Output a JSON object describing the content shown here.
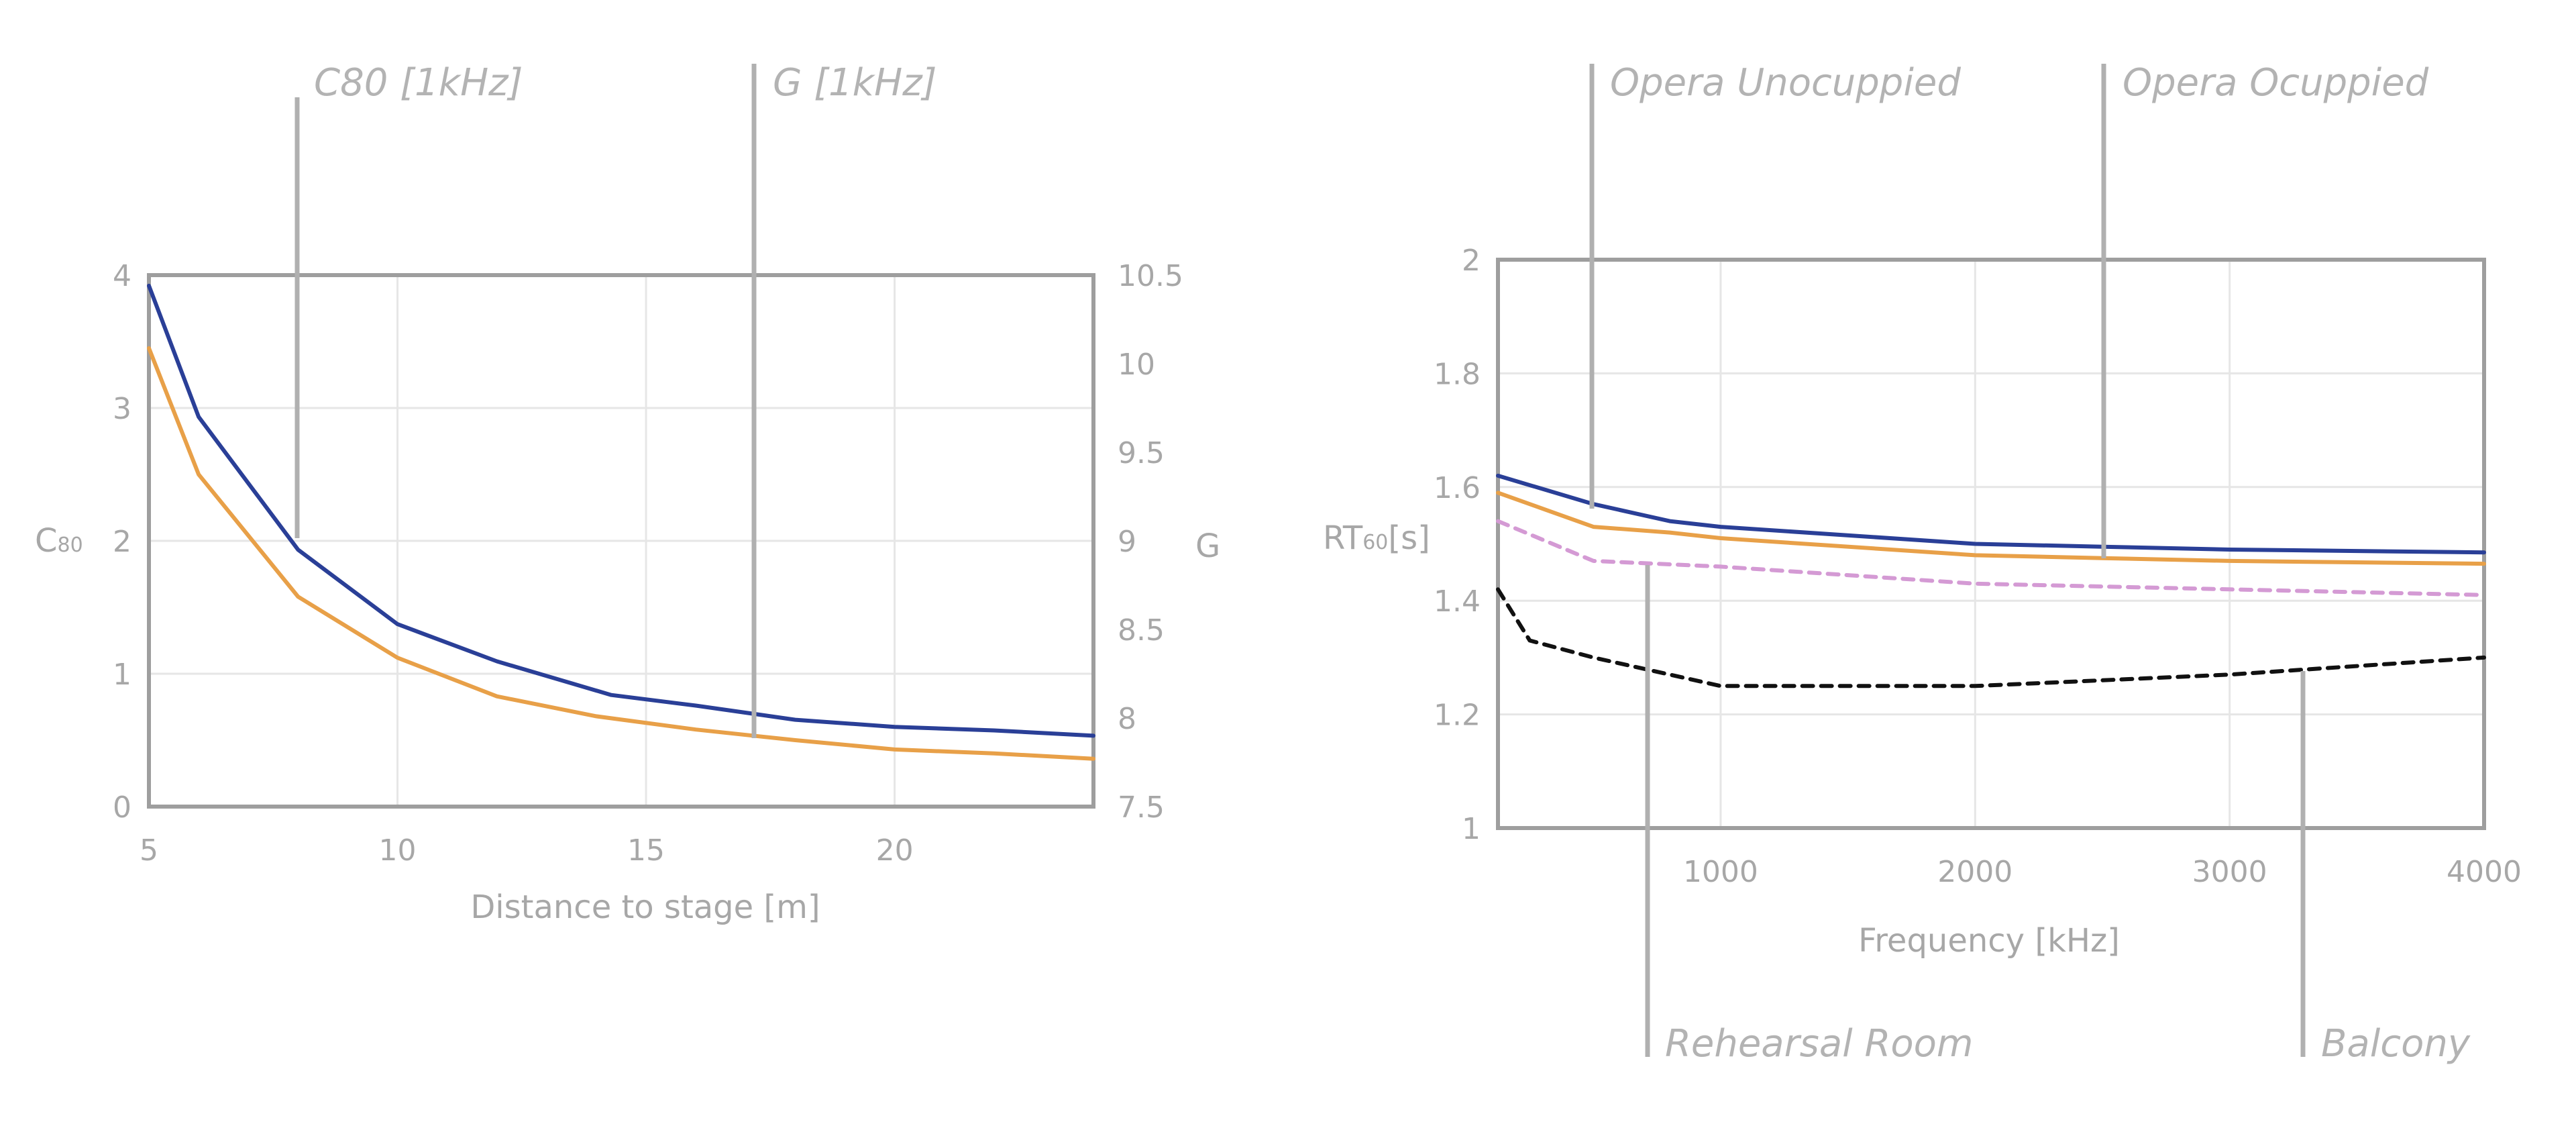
{
  "chart_data": [
    {
      "type": "line",
      "xlabel": "Distance to stage [m]",
      "ylabel": "C",
      "ylabel_sub": "80",
      "y2label": "G",
      "xlim": [
        5,
        24
      ],
      "ylim": [
        0,
        4
      ],
      "y2lim": [
        7.5,
        10.5
      ],
      "x_ticks": [
        "5",
        "10",
        "15",
        "20"
      ],
      "y_ticks": [
        "0",
        "1",
        "2",
        "3",
        "4"
      ],
      "y2_ticks": [
        "7.5",
        "8",
        "8.5",
        "9",
        "9.5",
        "10",
        "10.5"
      ],
      "grid": true,
      "callouts": [
        {
          "label": "C80 [1kHz]",
          "colour": "#b0b0b0"
        },
        {
          "label": "G [1kHz]",
          "colour": "#b0b0b0"
        }
      ],
      "series": [
        {
          "colour": "#2a3f97",
          "axis": "right",
          "x": [
            5,
            6,
            8,
            10,
            12,
            14.3,
            16,
            18,
            20,
            22,
            24
          ],
          "y": [
            10.44,
            9.7,
            8.95,
            8.53,
            8.32,
            8.13,
            8.07,
            7.99,
            7.95,
            7.93,
            7.9
          ]
        },
        {
          "colour": "#e8a048",
          "axis": "left",
          "x": [
            5,
            6,
            8,
            10,
            12,
            14,
            16,
            18,
            20,
            22,
            24
          ],
          "y": [
            3.45,
            2.5,
            1.58,
            1.12,
            0.83,
            0.68,
            0.58,
            0.5,
            0.43,
            0.4,
            0.36
          ]
        }
      ]
    },
    {
      "type": "line",
      "xlabel": "Frequency [kHz]",
      "ylabel": "RT",
      "ylabel_sub": "60",
      "ylabel_tail": "[s]",
      "xlim": [
        125,
        4000
      ],
      "ylim": [
        1,
        2
      ],
      "x_ticks": [
        "1000",
        "2000",
        "3000",
        "4000"
      ],
      "y_ticks": [
        "1",
        "1.2",
        "1.4",
        "1.6",
        "1.8",
        "2"
      ],
      "grid": true,
      "callouts": [
        {
          "label": "Opera Unocuppied",
          "colour": "#b0b0b0"
        },
        {
          "label": "Opera Ocuppied",
          "colour": "#b0b0b0"
        },
        {
          "label": "Rehearsal Room",
          "colour": "#b0b0b0"
        },
        {
          "label": "Balcony",
          "colour": "#b0b0b0"
        }
      ],
      "series": [
        {
          "colour": "#2a3f97",
          "dash": false,
          "x": [
            125,
            500,
            800,
            1000,
            2000,
            2500,
            3000,
            4000
          ],
          "y": [
            1.62,
            1.57,
            1.54,
            1.53,
            1.5,
            1.495,
            1.49,
            1.485
          ]
        },
        {
          "colour": "#e8a048",
          "dash": false,
          "x": [
            125,
            500,
            800,
            1000,
            2000,
            2500,
            3000,
            4000
          ],
          "y": [
            1.59,
            1.53,
            1.52,
            1.51,
            1.48,
            1.475,
            1.47,
            1.465
          ]
        },
        {
          "colour": "#d49ad4",
          "dash": true,
          "x": [
            125,
            500,
            1000,
            2000,
            3000,
            4000
          ],
          "y": [
            1.54,
            1.47,
            1.46,
            1.43,
            1.42,
            1.41
          ]
        },
        {
          "colour": "#111111",
          "dash": true,
          "x": [
            125,
            250,
            500,
            800,
            1000,
            2000,
            3000,
            4000
          ],
          "y": [
            1.42,
            1.33,
            1.3,
            1.27,
            1.25,
            1.25,
            1.27,
            1.3
          ]
        }
      ]
    }
  ]
}
